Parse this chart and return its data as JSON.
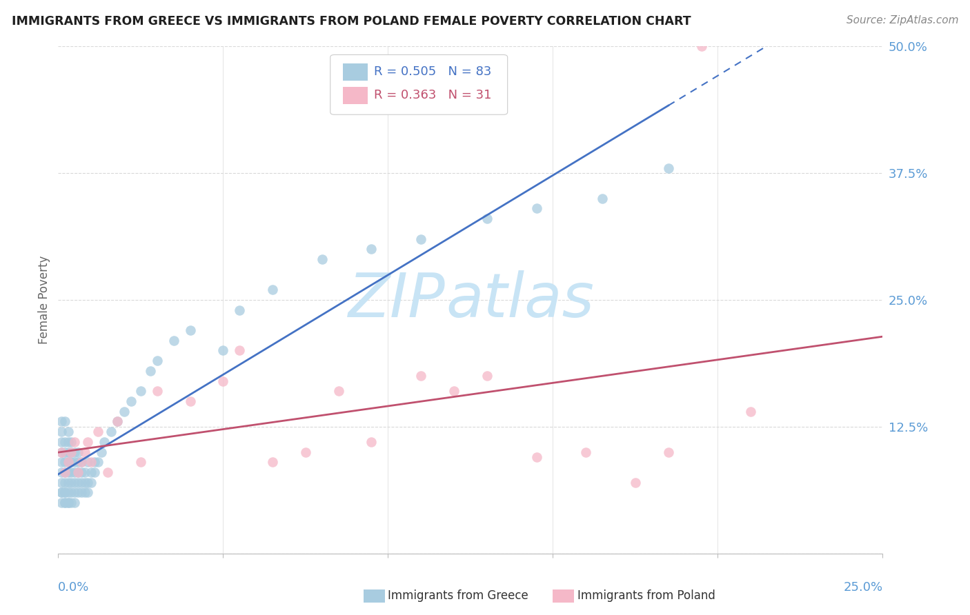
{
  "title": "IMMIGRANTS FROM GREECE VS IMMIGRANTS FROM POLAND FEMALE POVERTY CORRELATION CHART",
  "source": "Source: ZipAtlas.com",
  "ylabel": "Female Poverty",
  "xlim": [
    0.0,
    0.25
  ],
  "ylim": [
    0.0,
    0.5
  ],
  "ytick_vals": [
    0.0,
    0.125,
    0.25,
    0.375,
    0.5
  ],
  "ytick_labels": [
    "",
    "12.5%",
    "25.0%",
    "37.5%",
    "50.0%"
  ],
  "xtick_vals": [
    0.0,
    0.05,
    0.1,
    0.15,
    0.2,
    0.25
  ],
  "greece_color": "#a8cce0",
  "poland_color": "#f5b8c8",
  "greece_line_color": "#4472c4",
  "poland_line_color": "#c0506e",
  "axis_color": "#5b9bd5",
  "grid_color": "#d9d9d9",
  "title_color": "#1f1f1f",
  "source_color": "#888888",
  "ylabel_color": "#666666",
  "watermark_color": "#c8e4f5",
  "legend_text_greece_color": "#4472c4",
  "legend_text_poland_color": "#c0506e",
  "greece_R": 0.505,
  "greece_N": 83,
  "poland_R": 0.363,
  "poland_N": 31,
  "greece_x": [
    0.001,
    0.001,
    0.001,
    0.001,
    0.001,
    0.001,
    0.001,
    0.001,
    0.001,
    0.001,
    0.002,
    0.002,
    0.002,
    0.002,
    0.002,
    0.002,
    0.002,
    0.002,
    0.002,
    0.002,
    0.003,
    0.003,
    0.003,
    0.003,
    0.003,
    0.003,
    0.003,
    0.003,
    0.003,
    0.004,
    0.004,
    0.004,
    0.004,
    0.004,
    0.004,
    0.004,
    0.005,
    0.005,
    0.005,
    0.005,
    0.005,
    0.005,
    0.006,
    0.006,
    0.006,
    0.006,
    0.006,
    0.007,
    0.007,
    0.007,
    0.007,
    0.008,
    0.008,
    0.008,
    0.009,
    0.009,
    0.009,
    0.01,
    0.01,
    0.011,
    0.011,
    0.012,
    0.013,
    0.014,
    0.016,
    0.018,
    0.02,
    0.022,
    0.025,
    0.028,
    0.03,
    0.035,
    0.04,
    0.05,
    0.055,
    0.065,
    0.08,
    0.095,
    0.11,
    0.13,
    0.145,
    0.165,
    0.185
  ],
  "greece_y": [
    0.06,
    0.07,
    0.08,
    0.09,
    0.1,
    0.11,
    0.05,
    0.12,
    0.06,
    0.13,
    0.05,
    0.06,
    0.07,
    0.08,
    0.09,
    0.1,
    0.11,
    0.05,
    0.06,
    0.13,
    0.05,
    0.06,
    0.07,
    0.08,
    0.09,
    0.1,
    0.11,
    0.05,
    0.12,
    0.05,
    0.06,
    0.07,
    0.08,
    0.09,
    0.1,
    0.11,
    0.05,
    0.06,
    0.07,
    0.08,
    0.09,
    0.1,
    0.06,
    0.07,
    0.08,
    0.09,
    0.1,
    0.06,
    0.07,
    0.08,
    0.09,
    0.06,
    0.07,
    0.08,
    0.06,
    0.07,
    0.09,
    0.07,
    0.08,
    0.08,
    0.09,
    0.09,
    0.1,
    0.11,
    0.12,
    0.13,
    0.14,
    0.15,
    0.16,
    0.18,
    0.19,
    0.21,
    0.22,
    0.2,
    0.24,
    0.26,
    0.29,
    0.3,
    0.31,
    0.33,
    0.34,
    0.35,
    0.38
  ],
  "poland_x": [
    0.001,
    0.002,
    0.003,
    0.004,
    0.005,
    0.006,
    0.007,
    0.008,
    0.009,
    0.01,
    0.012,
    0.015,
    0.018,
    0.025,
    0.03,
    0.04,
    0.05,
    0.055,
    0.065,
    0.075,
    0.085,
    0.095,
    0.11,
    0.12,
    0.13,
    0.145,
    0.16,
    0.175,
    0.185,
    0.195,
    0.21
  ],
  "poland_y": [
    0.1,
    0.08,
    0.09,
    0.1,
    0.11,
    0.08,
    0.09,
    0.1,
    0.11,
    0.09,
    0.12,
    0.08,
    0.13,
    0.09,
    0.16,
    0.15,
    0.17,
    0.2,
    0.09,
    0.1,
    0.16,
    0.11,
    0.175,
    0.16,
    0.175,
    0.095,
    0.1,
    0.07,
    0.1,
    0.5,
    0.14
  ]
}
